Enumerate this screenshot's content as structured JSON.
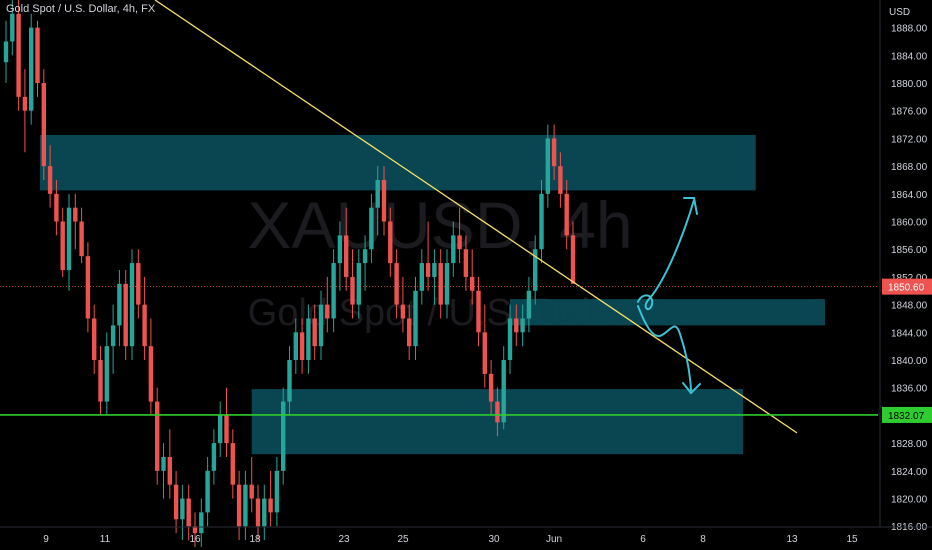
{
  "header": {
    "title": "Gold Spot / U.S. Dollar, 4h, FX"
  },
  "watermark": {
    "symbol": "XAUUSD, 4h",
    "name": "Gold Spot / U.S. Dollar"
  },
  "colors": {
    "background": "#000000",
    "up": "#26a69a",
    "down": "#ef5350",
    "zone": "#0a4a55",
    "trendline": "#f5e06a",
    "support": "#2ecc2e",
    "current": "#ef5350",
    "arrows": "#3ac3d6",
    "text": "#d1d4dc"
  },
  "chart_data": {
    "type": "candlestick",
    "title": "Gold Spot / U.S. Dollar, 4h, FX",
    "ylabel": "USD",
    "ylim": [
      1813,
      1893
    ],
    "price_ticks": [
      "1888.00",
      "1884.00",
      "1880.00",
      "1876.00",
      "1872.00",
      "1868.00",
      "1864.00",
      "1860.00",
      "1856.00",
      "1852.00",
      "1848.00",
      "1844.00",
      "1840.00",
      "1836.00",
      "1832.00",
      "1828.00",
      "1824.00",
      "1820.00",
      "1816.00"
    ],
    "date_ticks": [
      "9",
      "11",
      "16",
      "18",
      "23",
      "25",
      "30",
      "Jun",
      "6",
      "8",
      "13",
      "15"
    ],
    "current_price": {
      "value": 1850.6,
      "label": "1850.60"
    },
    "support_line": {
      "value": 1832.07,
      "label": "1832.07"
    },
    "trendline": {
      "from": [
        0,
        1893
      ],
      "to": [
        133,
        1831.5
      ]
    },
    "zones": [
      {
        "name": "resistance",
        "x0": 0,
        "x1": 119,
        "top": 1872.5,
        "bottom": 1864.5
      },
      {
        "name": "mid",
        "x0": 80,
        "x1": 130,
        "top": 1848.8,
        "bottom": 1845.0
      },
      {
        "name": "support",
        "x0": 39,
        "x1": 117,
        "top": 1835.8,
        "bottom": 1826.4
      }
    ],
    "anchors": [
      [
        0,
        1883,
        1889,
        1880,
        1886
      ],
      [
        1,
        1886,
        1892,
        1884,
        1890
      ],
      [
        2,
        1890,
        1892,
        1876,
        1878
      ],
      [
        3,
        1878,
        1882,
        1870,
        1876
      ],
      [
        4,
        1876,
        1890,
        1874,
        1888
      ],
      [
        5,
        1888,
        1889,
        1878,
        1880
      ],
      [
        6,
        1880,
        1882,
        1866,
        1868
      ],
      [
        7,
        1868,
        1871,
        1862,
        1864
      ],
      [
        8,
        1864,
        1866,
        1858,
        1860
      ],
      [
        9,
        1860,
        1862,
        1852,
        1853
      ],
      [
        10,
        1853,
        1864,
        1850,
        1862
      ],
      [
        11,
        1862,
        1864,
        1856,
        1860
      ],
      [
        12,
        1860,
        1862,
        1854,
        1855
      ],
      [
        13,
        1855,
        1857,
        1844,
        1846
      ],
      [
        14,
        1846,
        1848,
        1838,
        1840
      ],
      [
        15,
        1840,
        1842,
        1832,
        1834
      ],
      [
        16,
        1834,
        1844,
        1832,
        1842
      ],
      [
        17,
        1842,
        1848,
        1838,
        1845
      ],
      [
        18,
        1845,
        1853,
        1842,
        1851
      ],
      [
        19,
        1851,
        1853,
        1840,
        1842
      ],
      [
        20,
        1842,
        1856,
        1840,
        1854
      ],
      [
        21,
        1854,
        1856,
        1846,
        1848
      ],
      [
        22,
        1848,
        1852,
        1840,
        1842
      ],
      [
        23,
        1842,
        1846,
        1832,
        1834
      ],
      [
        24,
        1834,
        1836,
        1822,
        1824
      ],
      [
        25,
        1824,
        1828,
        1820,
        1826
      ],
      [
        26,
        1826,
        1830,
        1820,
        1822
      ],
      [
        27,
        1822,
        1824,
        1815,
        1817
      ],
      [
        28,
        1817,
        1822,
        1814,
        1820
      ],
      [
        29,
        1820,
        1822,
        1814,
        1816
      ],
      [
        30,
        1816,
        1818,
        1813,
        1815
      ],
      [
        31,
        1815,
        1820,
        1813,
        1818
      ],
      [
        32,
        1818,
        1826,
        1816,
        1824
      ],
      [
        33,
        1824,
        1830,
        1822,
        1828
      ],
      [
        34,
        1828,
        1834,
        1826,
        1832
      ],
      [
        35,
        1832,
        1836,
        1826,
        1828
      ],
      [
        36,
        1828,
        1830,
        1820,
        1822
      ],
      [
        37,
        1822,
        1824,
        1814,
        1816
      ],
      [
        38,
        1816,
        1824,
        1814,
        1822
      ],
      [
        39,
        1822,
        1826,
        1818,
        1820
      ],
      [
        40,
        1820,
        1822,
        1814,
        1816
      ],
      [
        41,
        1816,
        1822,
        1814,
        1820
      ],
      [
        42,
        1820,
        1824,
        1816,
        1818
      ],
      [
        43,
        1818,
        1826,
        1816,
        1824
      ],
      [
        44,
        1824,
        1836,
        1822,
        1834
      ],
      [
        45,
        1834,
        1842,
        1832,
        1840
      ],
      [
        46,
        1840,
        1846,
        1838,
        1844
      ],
      [
        47,
        1844,
        1846,
        1838,
        1840
      ],
      [
        48,
        1840,
        1848,
        1838,
        1846
      ],
      [
        49,
        1846,
        1848,
        1840,
        1842
      ],
      [
        50,
        1842,
        1850,
        1840,
        1848
      ],
      [
        51,
        1848,
        1852,
        1844,
        1846
      ],
      [
        52,
        1846,
        1856,
        1844,
        1854
      ],
      [
        53,
        1854,
        1860,
        1850,
        1858
      ],
      [
        54,
        1858,
        1862,
        1850,
        1852
      ],
      [
        55,
        1852,
        1856,
        1846,
        1848
      ],
      [
        56,
        1848,
        1856,
        1846,
        1854
      ],
      [
        57,
        1854,
        1858,
        1850,
        1856
      ],
      [
        58,
        1856,
        1864,
        1854,
        1862
      ],
      [
        59,
        1862,
        1868,
        1858,
        1866
      ],
      [
        60,
        1866,
        1868,
        1858,
        1860
      ],
      [
        61,
        1860,
        1862,
        1852,
        1854
      ],
      [
        62,
        1854,
        1856,
        1846,
        1848
      ],
      [
        63,
        1848,
        1852,
        1844,
        1846
      ],
      [
        64,
        1846,
        1848,
        1840,
        1842
      ],
      [
        65,
        1842,
        1852,
        1840,
        1850
      ],
      [
        66,
        1850,
        1856,
        1848,
        1854
      ],
      [
        67,
        1854,
        1860,
        1850,
        1852
      ],
      [
        68,
        1852,
        1856,
        1848,
        1854
      ],
      [
        69,
        1854,
        1856,
        1846,
        1848
      ],
      [
        70,
        1848,
        1856,
        1846,
        1854
      ],
      [
        71,
        1854,
        1860,
        1852,
        1858
      ],
      [
        72,
        1858,
        1862,
        1854,
        1856
      ],
      [
        73,
        1856,
        1858,
        1850,
        1852
      ],
      [
        74,
        1852,
        1856,
        1848,
        1850
      ],
      [
        75,
        1850,
        1852,
        1842,
        1844
      ],
      [
        76,
        1844,
        1848,
        1836,
        1838
      ],
      [
        77,
        1838,
        1840,
        1832,
        1834
      ],
      [
        78,
        1834,
        1836,
        1829,
        1831
      ],
      [
        79,
        1831,
        1842,
        1830,
        1840
      ],
      [
        80,
        1840,
        1848,
        1838,
        1846
      ],
      [
        81,
        1846,
        1848,
        1842,
        1844
      ],
      [
        82,
        1844,
        1848,
        1842,
        1846
      ],
      [
        83,
        1846,
        1852,
        1844,
        1850
      ],
      [
        84,
        1850,
        1858,
        1848,
        1856
      ],
      [
        85,
        1856,
        1866,
        1854,
        1864
      ],
      [
        86,
        1864,
        1874,
        1862,
        1872
      ],
      [
        87,
        1872,
        1874,
        1866,
        1868
      ],
      [
        88,
        1868,
        1870,
        1862,
        1864
      ],
      [
        89,
        1864,
        1866,
        1856,
        1858
      ],
      [
        90,
        1858,
        1860,
        1851,
        1851
      ]
    ]
  }
}
